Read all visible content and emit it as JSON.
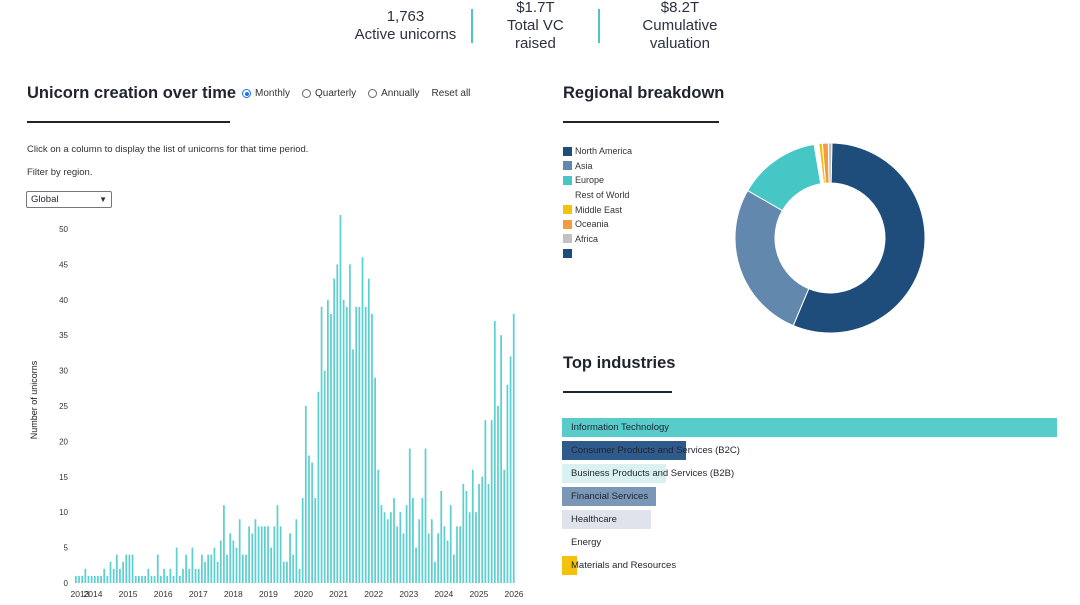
{
  "kpis": [
    {
      "value": "1,763",
      "label": "Active unicorns"
    },
    {
      "value": "$1.7T",
      "label": "Total VC raised"
    },
    {
      "value": "$8.2T",
      "label": "Cumulative valuation"
    }
  ],
  "timeline": {
    "title": "Unicorn creation over time",
    "radios": [
      {
        "label": "Monthly",
        "checked": true
      },
      {
        "label": "Quarterly",
        "checked": false
      },
      {
        "label": "Annually",
        "checked": false
      }
    ],
    "reset_label": "Reset all",
    "help_text": "Click on a column to display the list of unicorns for that time period.",
    "filter_label": "Filter by region.",
    "region_select": {
      "value": "Global",
      "arrow_icon": "chevron-down-icon"
    }
  },
  "region": {
    "title": "Regional breakdown",
    "legend_extra_swatch": "#1e4d7b"
  },
  "industries_title": "Top industries",
  "colors": {
    "bar": "#5ccfcf",
    "title_rule": "#1f2430",
    "kpi_divider": "#4fc4c4"
  },
  "chart_data": [
    {
      "type": "bar",
      "title": "Unicorn creation over time",
      "xlabel": "",
      "ylabel": "Number of unicorns",
      "ylim": [
        0,
        50
      ],
      "yticks": [
        0,
        5,
        10,
        15,
        20,
        25,
        30,
        35,
        40,
        45,
        50
      ],
      "x_tick_labels": [
        "2013",
        "2014",
        "2015",
        "2016",
        "2017",
        "2018",
        "2019",
        "2020",
        "2021",
        "2022",
        "2023",
        "2024",
        "2025",
        "2026"
      ],
      "grid": false,
      "values": [
        1,
        1,
        1,
        2,
        1,
        1,
        1,
        1,
        1,
        2,
        1,
        3,
        2,
        4,
        2,
        3,
        4,
        4,
        4,
        1,
        1,
        1,
        1,
        2,
        1,
        1,
        4,
        1,
        2,
        1,
        2,
        1,
        5,
        1,
        2,
        4,
        2,
        5,
        2,
        2,
        4,
        3,
        4,
        4,
        5,
        3,
        6,
        11,
        4,
        7,
        6,
        5,
        9,
        4,
        4,
        8,
        7,
        9,
        8,
        8,
        8,
        8,
        5,
        8,
        11,
        8,
        3,
        3,
        7,
        4,
        9,
        2,
        12,
        25,
        18,
        17,
        12,
        27,
        39,
        30,
        40,
        38,
        43,
        45,
        52,
        40,
        39,
        45,
        33,
        39,
        39,
        46,
        39,
        43,
        38,
        29,
        16,
        11,
        10,
        9,
        10,
        12,
        8,
        10,
        7,
        11,
        19,
        12,
        5,
        9,
        12,
        19,
        7,
        9,
        3,
        7,
        13,
        8,
        6,
        11,
        4,
        8,
        8,
        14,
        13,
        10,
        16,
        10,
        14,
        15,
        23,
        14,
        23,
        37,
        25,
        35,
        16,
        28,
        32,
        38
      ]
    },
    {
      "type": "pie",
      "title": "Regional breakdown",
      "categories": [
        "North America",
        "Asia",
        "Europe",
        "Rest of World",
        "Middle East",
        "Oceania",
        "Africa"
      ],
      "values": [
        56.0,
        27.0,
        14.0,
        0.8,
        0.6,
        1.0,
        0.6
      ],
      "colors": [
        "#1e4d7b",
        "#6288ad",
        "#47c6c6",
        "#ffffff",
        "#f4c20d",
        "#f29b3f",
        "#c2c2c2"
      ],
      "legend_position": "left"
    },
    {
      "type": "bar",
      "title": "Top industries",
      "orientation": "horizontal",
      "categories": [
        "Information Technology",
        "Consumer Products and Services (B2C)",
        "Business Products and Services (B2B)",
        "Financial Services",
        "Healthcare",
        "Energy",
        "Materials and Resources"
      ],
      "values": [
        100,
        25,
        21,
        19,
        18,
        1,
        3
      ],
      "value_units": "percent of largest bar",
      "colors": [
        "#58cbcb",
        "#2f5b8c",
        "#d9f1f1",
        "#7b97b8",
        "#e0e3eb",
        "#ffffff",
        "#f4c20d"
      ]
    }
  ]
}
